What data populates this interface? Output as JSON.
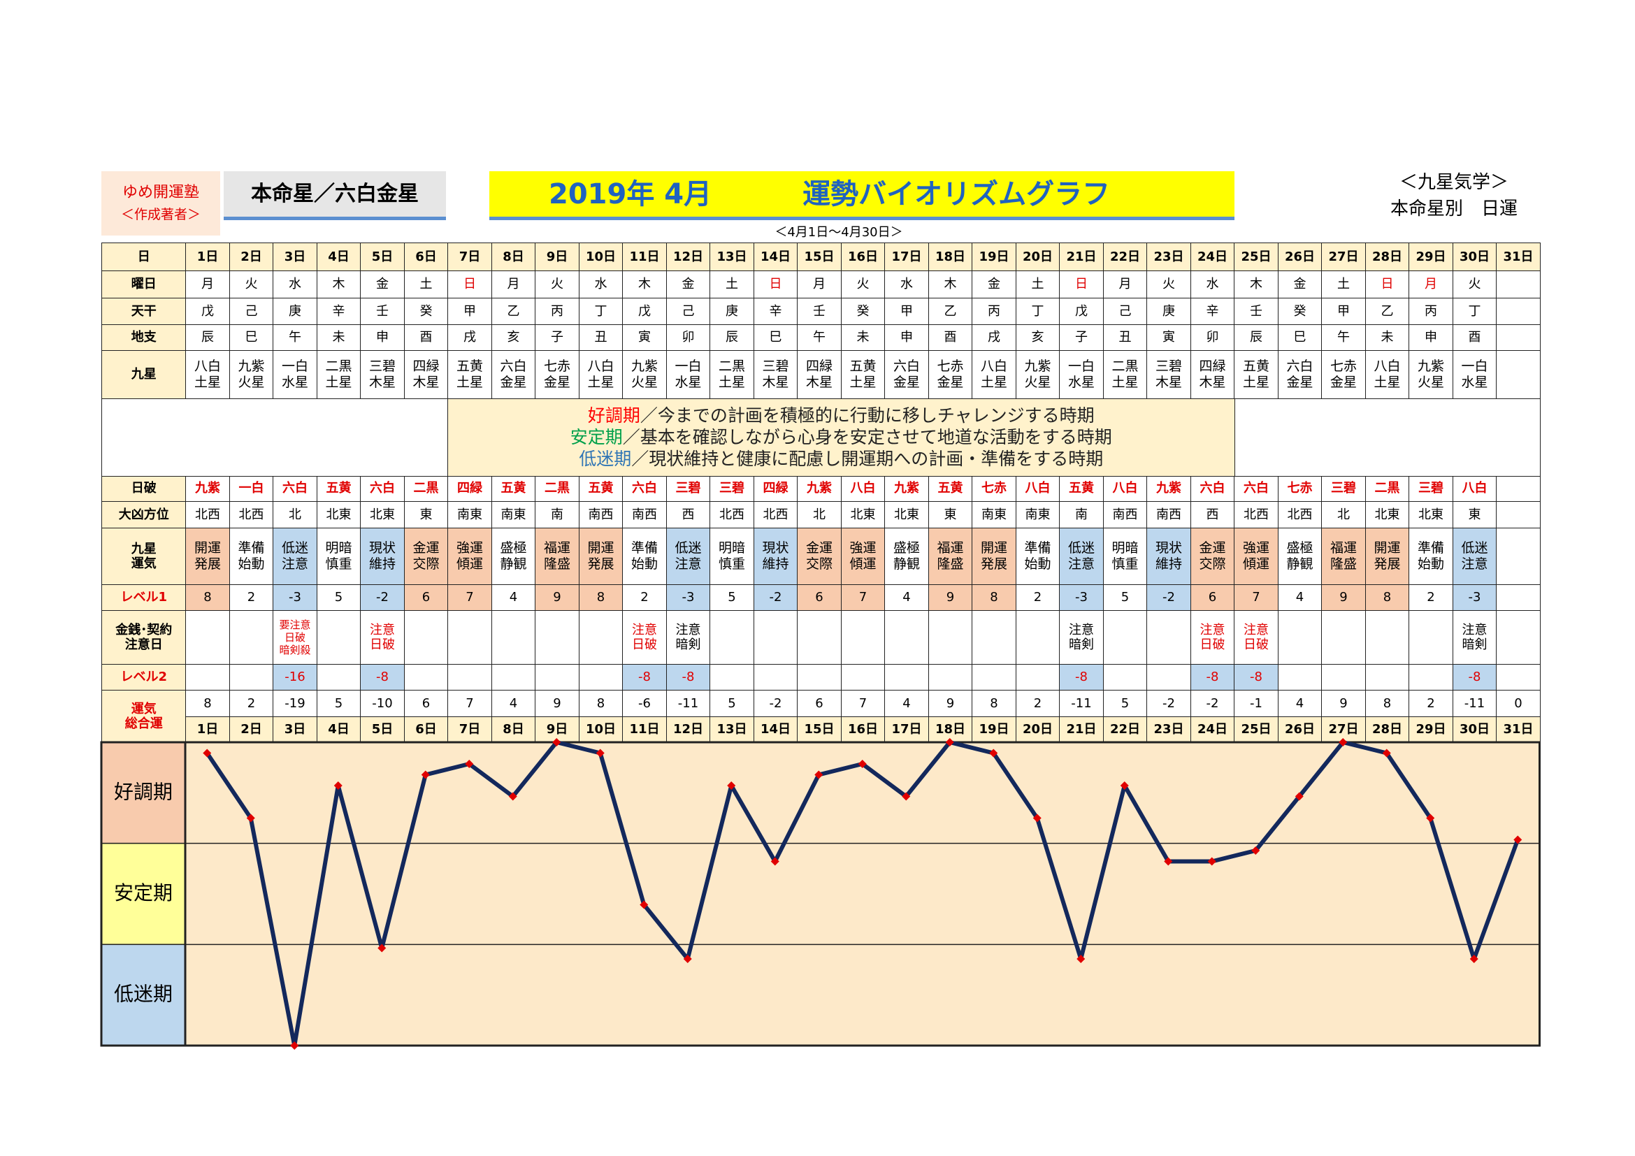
{
  "header": {
    "school": "ゆめ開運塾",
    "author": "＜作成著者＞",
    "honmei": "本命星／六白金星",
    "year_month": "2019年 4月",
    "title": "運勢バイオリズムグラフ",
    "category": "＜九星気学＞",
    "subtitle": "本命星別　日運",
    "period": "＜4月1日～4月30日＞"
  },
  "table": {
    "corner": "日",
    "row_labels": [
      "曜日",
      "天干",
      "地支",
      "九星",
      "日破",
      "大凶方位",
      "九星\n運気",
      "レベル1",
      "金銭･契約\n注意日",
      "レベル2",
      "運気\n総合運"
    ],
    "days": [
      "1日",
      "2日",
      "3日",
      "4日",
      "5日",
      "6日",
      "7日",
      "8日",
      "9日",
      "10日",
      "11日",
      "12日",
      "13日",
      "14日",
      "15日",
      "16日",
      "17日",
      "18日",
      "19日",
      "20日",
      "21日",
      "22日",
      "23日",
      "24日",
      "25日",
      "26日",
      "27日",
      "28日",
      "29日",
      "30日",
      "31日"
    ],
    "weekdays": [
      "月",
      "火",
      "水",
      "木",
      "金",
      "土",
      "日",
      "月",
      "火",
      "水",
      "木",
      "金",
      "土",
      "日",
      "月",
      "火",
      "水",
      "木",
      "金",
      "土",
      "日",
      "月",
      "火",
      "水",
      "木",
      "金",
      "土",
      "日",
      "月",
      "火",
      null
    ],
    "weekday_colors": [
      "#000",
      "#000",
      "#000",
      "#000",
      "#000",
      "#000",
      "#e00000",
      "#000",
      "#000",
      "#000",
      "#000",
      "#000",
      "#000",
      "#e00000",
      "#000",
      "#000",
      "#000",
      "#000",
      "#000",
      "#000",
      "#e00000",
      "#000",
      "#000",
      "#000",
      "#000",
      "#000",
      "#000",
      "#e00000",
      "#e00000",
      "#000",
      null
    ],
    "tenkan": [
      "戊",
      "己",
      "庚",
      "辛",
      "壬",
      "癸",
      "甲",
      "乙",
      "丙",
      "丁",
      "戊",
      "己",
      "庚",
      "辛",
      "壬",
      "癸",
      "甲",
      "乙",
      "丙",
      "丁",
      "戊",
      "己",
      "庚",
      "辛",
      "壬",
      "癸",
      "甲",
      "乙",
      "丙",
      "丁",
      null
    ],
    "chishi": [
      "辰",
      "巳",
      "午",
      "未",
      "申",
      "酉",
      "戌",
      "亥",
      "子",
      "丑",
      "寅",
      "卯",
      "辰",
      "巳",
      "午",
      "未",
      "申",
      "酉",
      "戌",
      "亥",
      "子",
      "丑",
      "寅",
      "卯",
      "辰",
      "巳",
      "午",
      "未",
      "申",
      "酉",
      null
    ],
    "kyusei": [
      "八白\n土星",
      "九紫\n火星",
      "一白\n水星",
      "二黒\n土星",
      "三碧\n木星",
      "四緑\n木星",
      "五黄\n土星",
      "六白\n金星",
      "七赤\n金星",
      "八白\n土星",
      "九紫\n火星",
      "一白\n水星",
      "二黒\n土星",
      "三碧\n木星",
      "四緑\n木星",
      "五黄\n土星",
      "六白\n金星",
      "七赤\n金星",
      "八白\n土星",
      "九紫\n火星",
      "一白\n水星",
      "二黒\n土星",
      "三碧\n木星",
      "四緑\n木星",
      "五黄\n土星",
      "六白\n金星",
      "七赤\n金星",
      "八白\n土星",
      "九紫\n火星",
      "一白\n水星",
      null
    ],
    "nippa": [
      "九紫",
      "一白",
      "六白",
      "五黄",
      "六白",
      "二黒",
      "四緑",
      "五黄",
      "二黒",
      "五黄",
      "六白",
      "三碧",
      "三碧",
      "四緑",
      "九紫",
      "八白",
      "九紫",
      "五黄",
      "七赤",
      "八白",
      "五黄",
      "八白",
      "九紫",
      "六白",
      "六白",
      "七赤",
      "三碧",
      "二黒",
      "三碧",
      "八白",
      null
    ],
    "daikyo": [
      "北西",
      "北西",
      "北",
      "北東",
      "北東",
      "東",
      "南東",
      "南東",
      "南",
      "南西",
      "南西",
      "西",
      "北西",
      "北西",
      "北",
      "北東",
      "北東",
      "東",
      "南東",
      "南東",
      "南",
      "南西",
      "南西",
      "西",
      "北西",
      "北西",
      "北",
      "北東",
      "北東",
      "東",
      null
    ],
    "unki": [
      "開運\n発展",
      "準備\n始動",
      "低迷\n注意",
      "明暗\n慎重",
      "現状\n維持",
      "金運\n交際",
      "強運\n傾運",
      "盛極\n静観",
      "福運\n隆盛",
      "開運\n発展",
      "準備\n始動",
      "低迷\n注意",
      "明暗\n慎重",
      "現状\n維持",
      "金運\n交際",
      "強運\n傾運",
      "盛極\n静観",
      "福運\n隆盛",
      "開運\n発展",
      "準備\n始動",
      "低迷\n注意",
      "明暗\n慎重",
      "現状\n維持",
      "金運\n交際",
      "強運\n傾運",
      "盛極\n静観",
      "福運\n隆盛",
      "開運\n発展",
      "準備\n始動",
      "低迷\n注意",
      null
    ],
    "level1": [
      8,
      2,
      -3,
      5,
      -2,
      6,
      7,
      4,
      9,
      8,
      2,
      -3,
      5,
      -2,
      6,
      7,
      4,
      9,
      8,
      2,
      -3,
      5,
      -2,
      6,
      7,
      4,
      9,
      8,
      2,
      -3,
      null
    ],
    "money": [
      null,
      null,
      {
        "text": "要注意\n日破\n暗剣殺",
        "color": "#e00000"
      },
      null,
      {
        "text": "注意\n日破",
        "color": "#e00000"
      },
      null,
      null,
      null,
      null,
      null,
      {
        "text": "注意\n日破",
        "color": "#e00000"
      },
      {
        "text": "注意\n暗剣",
        "color": "#000"
      },
      null,
      null,
      null,
      null,
      null,
      null,
      null,
      null,
      {
        "text": "注意\n暗剣",
        "color": "#000"
      },
      null,
      null,
      {
        "text": "注意\n日破",
        "color": "#e00000"
      },
      {
        "text": "注意\n日破",
        "color": "#e00000"
      },
      null,
      null,
      null,
      null,
      {
        "text": "注意\n暗剣",
        "color": "#000"
      },
      null
    ],
    "level2": [
      null,
      null,
      -16,
      null,
      -8,
      null,
      null,
      null,
      null,
      null,
      -8,
      -8,
      null,
      null,
      null,
      null,
      null,
      null,
      null,
      null,
      -8,
      null,
      null,
      -8,
      -8,
      null,
      null,
      null,
      null,
      -8,
      null
    ],
    "total": [
      8,
      2,
      -19,
      5,
      -10,
      6,
      7,
      4,
      9,
      8,
      -6,
      -11,
      5,
      -2,
      6,
      7,
      4,
      9,
      8,
      2,
      -11,
      5,
      -2,
      -2,
      -1,
      4,
      9,
      8,
      2,
      -11,
      0
    ]
  },
  "legend": [
    {
      "label": "好調期",
      "color": "#ff0000",
      "text": "／今までの計画を積極的に行動に移しチャレンジする時期"
    },
    {
      "label": "安定期",
      "color": "#00a04a",
      "text": "／基本を確認しながら心身を安定させて地道な活動をする時期"
    },
    {
      "label": "低迷期",
      "color": "#2f75b5",
      "text": "／現状維持と健康に配慮し開運期への計画・準備をする時期"
    }
  ],
  "chart_data": {
    "type": "line",
    "bands": [
      "好調期",
      "安定期",
      "低迷期"
    ],
    "band_colors": [
      "#f8cbad",
      "#ffff99",
      "#bdd7ee"
    ],
    "values": [
      8,
      2,
      -19,
      5,
      -10,
      6,
      7,
      4,
      9,
      8,
      -6,
      -11,
      5,
      -2,
      6,
      7,
      4,
      9,
      8,
      2,
      -11,
      5,
      -2,
      -2,
      -1,
      4,
      9,
      8,
      2,
      -11,
      0
    ],
    "ylim": [
      -19,
      9
    ],
    "line_color": "#13285c",
    "marker_color": "#e00000",
    "background": "#fde9c9"
  }
}
